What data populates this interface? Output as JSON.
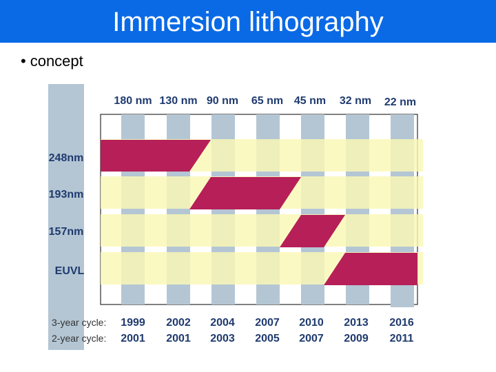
{
  "slide": {
    "title": "Immersion lithography",
    "bullet_mark": "•",
    "bullet_text": "concept"
  },
  "diagram": {
    "node_labels": [
      "180 nm",
      "130 nm",
      "90 nm",
      "65 nm",
      "45 nm",
      "32 nm",
      "22 nm"
    ],
    "wavelength_labels": [
      "248nm",
      "193nm",
      "157nm",
      "EUVL"
    ],
    "cycle_labels": [
      "3-year cycle:",
      "2-year cycle:"
    ],
    "years_3yr": [
      "1999",
      "2002",
      "2004",
      "2007",
      "2010",
      "2013",
      "2016"
    ],
    "years_2yr": [
      "2001",
      "2001",
      "2003",
      "2005",
      "2007",
      "2009",
      "2011"
    ],
    "colors": {
      "title_bar": "#0a6ae6",
      "node_column": "#b4c6d4",
      "wavelength_band": "#faf8b4",
      "generation_bar": "#b61f58",
      "axis_strip": "#b4c6d4"
    }
  }
}
